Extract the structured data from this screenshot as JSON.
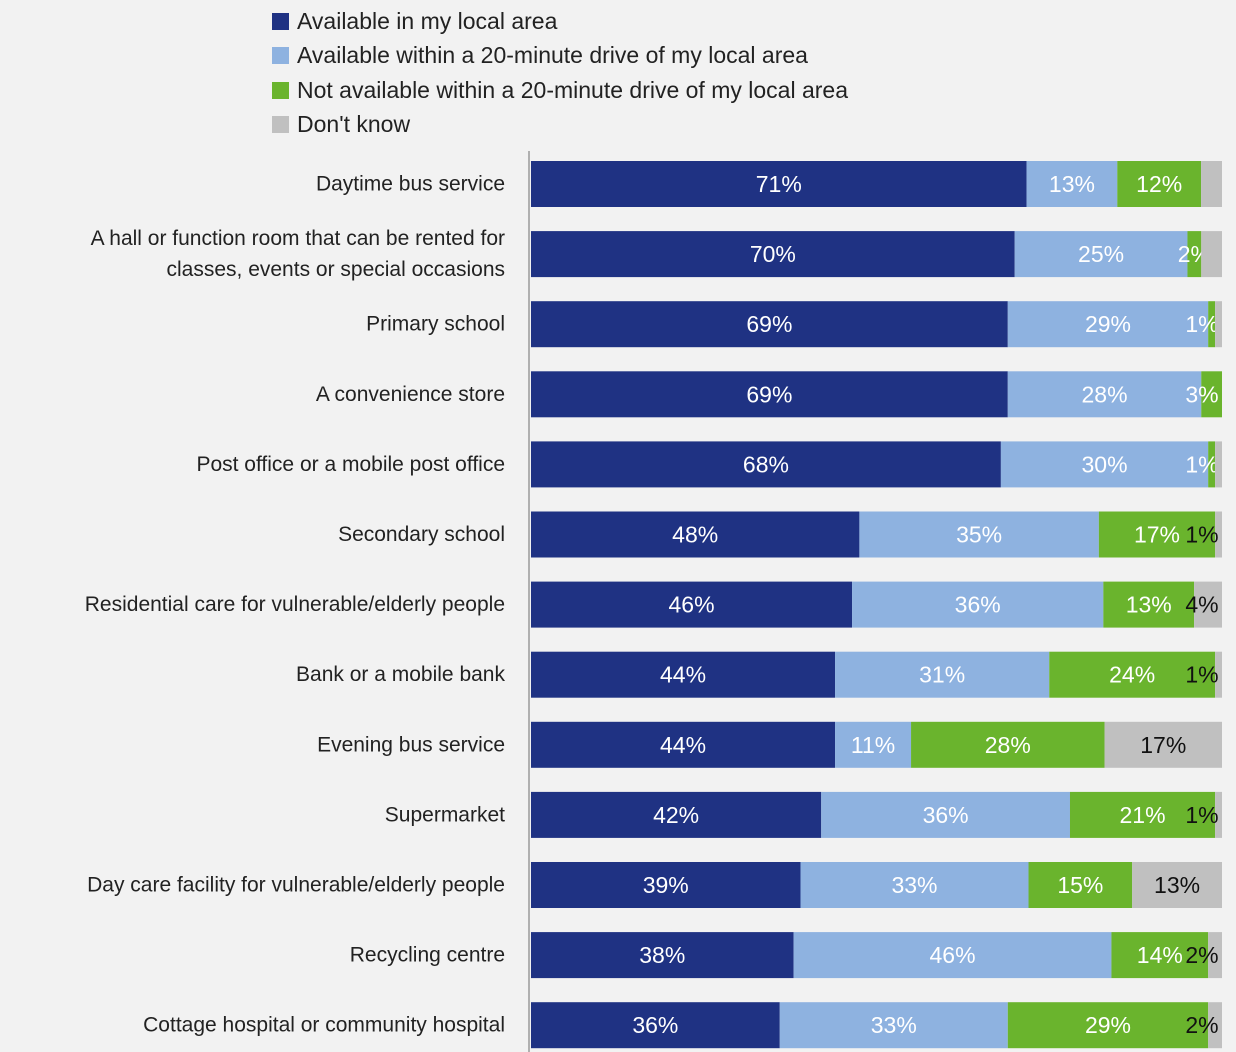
{
  "chart_data": {
    "type": "bar",
    "orientation": "horizontal",
    "stacked": true,
    "title": "",
    "xlabel": "",
    "ylabel": "",
    "xlim": [
      0,
      100
    ],
    "grid": false,
    "legend_position": "top",
    "categories": [
      [
        "Daytime bus service"
      ],
      [
        "A hall or function room that can be rented for",
        "classes, events or special occasions"
      ],
      [
        "Primary school"
      ],
      [
        "A convenience store"
      ],
      [
        "Post office or a mobile post office"
      ],
      [
        "Secondary school"
      ],
      [
        "Residential care for vulnerable/elderly people"
      ],
      [
        "Bank or a mobile bank"
      ],
      [
        "Evening bus service"
      ],
      [
        "Supermarket"
      ],
      [
        "Day care facility for vulnerable/elderly people"
      ],
      [
        "Recycling centre"
      ],
      [
        "Cottage hospital or community hospital"
      ]
    ],
    "series": [
      {
        "name": "Available in my local area",
        "color": "#1f3283",
        "label_color": "#ffffff",
        "values": [
          71,
          70,
          69,
          69,
          68,
          48,
          46,
          44,
          44,
          42,
          39,
          38,
          36
        ]
      },
      {
        "name": "Available within a 20-minute drive of my local area",
        "color": "#8eb2e0",
        "label_color": "#ffffff",
        "values": [
          13,
          25,
          29,
          28,
          30,
          35,
          36,
          31,
          11,
          36,
          33,
          46,
          33
        ]
      },
      {
        "name": "Not available within a 20-minute drive of my local area",
        "color": "#6ab42d",
        "label_color": "#ffffff",
        "values": [
          12,
          2,
          1,
          3,
          1,
          17,
          13,
          24,
          28,
          21,
          15,
          14,
          29
        ]
      },
      {
        "name": "Don't know",
        "color": "#c0c0c0",
        "label_color": "#111111",
        "values": [
          3,
          3,
          1,
          0,
          1,
          1,
          4,
          1,
          17,
          1,
          13,
          2,
          2
        ]
      }
    ],
    "data_labels": [
      [
        "71%",
        "13%",
        "12%",
        ""
      ],
      [
        "70%",
        "25%",
        "2%",
        ""
      ],
      [
        "69%",
        "29%",
        "1%",
        ""
      ],
      [
        "69%",
        "28%",
        "3%",
        ""
      ],
      [
        "68%",
        "30%",
        "1%",
        ""
      ],
      [
        "48%",
        "35%",
        "17%",
        "1%"
      ],
      [
        "46%",
        "36%",
        "13%",
        "4%"
      ],
      [
        "44%",
        "31%",
        "24%",
        "1%"
      ],
      [
        "44%",
        "11%",
        "28%",
        "17%"
      ],
      [
        "42%",
        "36%",
        "21%",
        "1%"
      ],
      [
        "39%",
        "33%",
        "15%",
        "13%"
      ],
      [
        "38%",
        "46%",
        "14%",
        "2%"
      ],
      [
        "36%",
        "33%",
        "29%",
        "2%"
      ]
    ]
  }
}
